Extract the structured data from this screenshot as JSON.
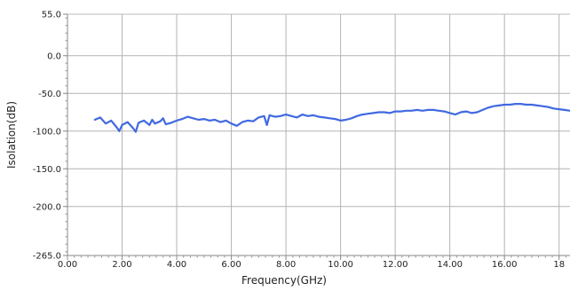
{
  "chart_data": {
    "type": "line",
    "title": "",
    "xlabel": "Frequency(GHz)",
    "ylabel": "Isolation(dB)",
    "xlim": [
      0,
      18.4
    ],
    "ylim": [
      -265,
      55
    ],
    "x_ticks": [
      0,
      2,
      4,
      6,
      8,
      10,
      12,
      14,
      16,
      18
    ],
    "x_tick_labels": [
      "0.00",
      "2.00",
      "4.00",
      "6.00",
      "8.00",
      "10.00",
      "12.00",
      "14.00",
      "16.00",
      "18"
    ],
    "y_ticks": [
      55,
      0,
      -50,
      -100,
      -150,
      -200,
      -265
    ],
    "y_tick_labels": [
      "55.0",
      "0.0",
      "-50.0",
      "-100.0",
      "-150.0",
      "-200.0",
      "-265.0"
    ],
    "grid": true,
    "legend": "none",
    "series": [
      {
        "color": "#4169e1",
        "x": [
          1.0,
          1.2,
          1.4,
          1.6,
          1.8,
          1.9,
          2.0,
          2.2,
          2.4,
          2.5,
          2.6,
          2.8,
          3.0,
          3.1,
          3.2,
          3.4,
          3.5,
          3.6,
          3.8,
          4.0,
          4.2,
          4.4,
          4.6,
          4.8,
          5.0,
          5.2,
          5.4,
          5.6,
          5.8,
          6.0,
          6.2,
          6.4,
          6.6,
          6.8,
          7.0,
          7.2,
          7.3,
          7.4,
          7.6,
          7.8,
          8.0,
          8.2,
          8.4,
          8.6,
          8.8,
          9.0,
          9.2,
          9.4,
          9.6,
          9.8,
          10.0,
          10.2,
          10.4,
          10.6,
          10.8,
          11.0,
          11.2,
          11.4,
          11.6,
          11.8,
          12.0,
          12.2,
          12.4,
          12.6,
          12.8,
          13.0,
          13.2,
          13.4,
          13.6,
          13.8,
          14.0,
          14.2,
          14.4,
          14.6,
          14.8,
          15.0,
          15.2,
          15.4,
          15.6,
          15.8,
          16.0,
          16.2,
          16.4,
          16.6,
          16.8,
          17.0,
          17.2,
          17.4,
          17.6,
          17.8,
          18.0,
          18.2,
          18.4
        ],
        "y": [
          -85,
          -82,
          -90,
          -86,
          -95,
          -100,
          -92,
          -88,
          -96,
          -101,
          -89,
          -86,
          -92,
          -85,
          -90,
          -87,
          -83,
          -91,
          -89,
          -86,
          -84,
          -81,
          -83,
          -85,
          -84,
          -86,
          -85,
          -88,
          -86,
          -90,
          -93,
          -88,
          -86,
          -87,
          -82,
          -80,
          -92,
          -79,
          -81,
          -80,
          -78,
          -80,
          -82,
          -78,
          -80,
          -79,
          -81,
          -82,
          -83,
          -84,
          -86,
          -85,
          -83,
          -80,
          -78,
          -77,
          -76,
          -75,
          -75,
          -76,
          -74,
          -74,
          -73,
          -73,
          -72,
          -73,
          -72,
          -72,
          -73,
          -74,
          -76,
          -78,
          -75,
          -74,
          -76,
          -75,
          -72,
          -69,
          -67,
          -66,
          -65,
          -65,
          -64,
          -64,
          -65,
          -65,
          -66,
          -67,
          -68,
          -70,
          -71,
          -72,
          -73
        ]
      }
    ]
  }
}
